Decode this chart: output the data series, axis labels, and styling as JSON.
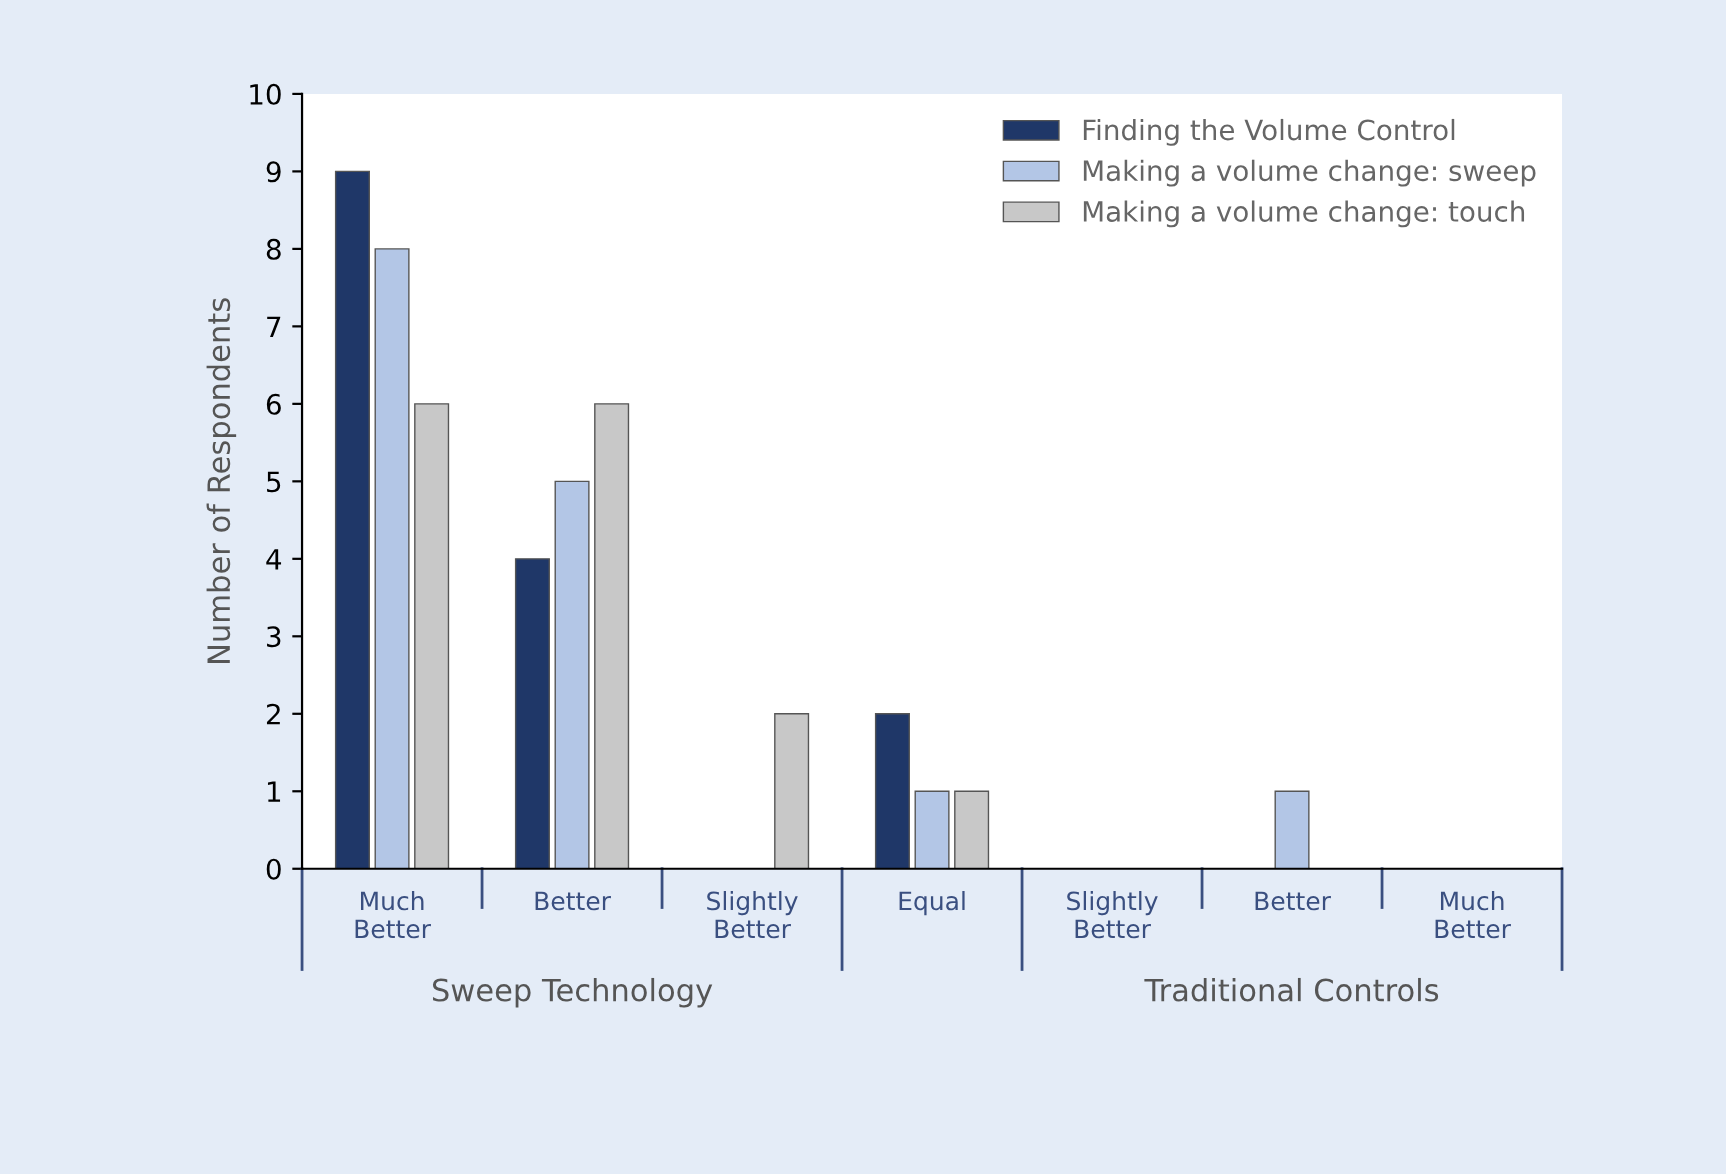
{
  "chart_data": {
    "type": "bar",
    "ylabel": "Number of Respondents",
    "categories": [
      "Much\nBetter",
      "Better",
      "Slightly\nBetter",
      "Equal",
      "Slightly\nBetter",
      "Better",
      "Much\nBetter"
    ],
    "series": [
      {
        "name": "Finding the Volume Control",
        "color": "#1f3768",
        "values": [
          9,
          4,
          0,
          2,
          0,
          0,
          0
        ]
      },
      {
        "name": "Making a volume change: sweep",
        "color": "#b3c6e6",
        "values": [
          8,
          5,
          0,
          1,
          0,
          1,
          0
        ]
      },
      {
        "name": "Making a volume change: touch",
        "color": "#c8c8c8",
        "values": [
          6,
          6,
          2,
          1,
          0,
          0,
          0
        ]
      }
    ],
    "ylim": [
      0,
      10
    ],
    "yticks": [
      0,
      1,
      2,
      3,
      4,
      5,
      6,
      7,
      8,
      9,
      10
    ],
    "grid": false,
    "legend": "top right",
    "annotations": [
      "Sweep Technology",
      "Traditional Controls"
    ]
  }
}
